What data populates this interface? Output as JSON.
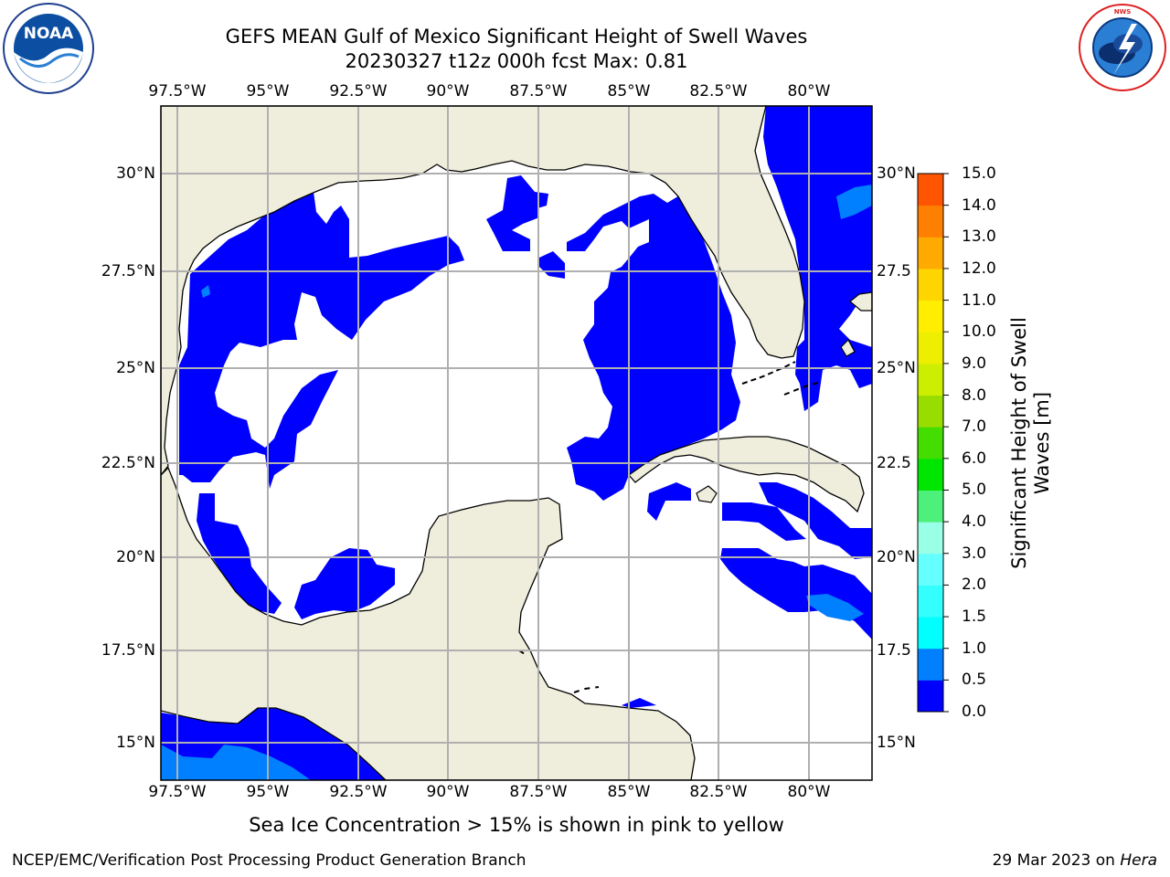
{
  "header": {
    "title": "GEFS MEAN Gulf of Mexico Significant Height of Swell Waves",
    "subtitle": "20230327 t12z 000h fcst   Max: 0.81"
  },
  "map": {
    "top_lon_labels": [
      "97.5°W",
      "95°W",
      "92.5°W",
      "90°W",
      "87.5°W",
      "85°W",
      "82.5°W",
      "80°W"
    ],
    "bottom_lon_labels": [
      "97.5°W",
      "95°W",
      "92.5°W",
      "90°W",
      "87.5°W",
      "85°W",
      "82.5°W",
      "80°W"
    ],
    "left_lat_labels": [
      "30°N",
      "27.5°N",
      "25°N",
      "22.5°N",
      "20°N",
      "17.5°N",
      "15°N"
    ],
    "right_lat_labels": [
      "30°N",
      "27.5",
      "25°N",
      "22.5",
      "20°N",
      "17.5",
      "15°N"
    ],
    "colors": {
      "land": "#efeddc",
      "ocean": "#ffffff",
      "grid": "#b0b0b0",
      "swell_0_0p5": "#0000ff",
      "swell_0p5_1": "#0080ff"
    }
  },
  "colorbar": {
    "title": "Significant Height of Swell Waves [m]",
    "levels": [
      "0.0",
      "0.5",
      "1.0",
      "1.5",
      "2.0",
      "3.0",
      "4.0",
      "5.0",
      "6.0",
      "7.0",
      "8.0",
      "9.0",
      "10.0",
      "11.0",
      "12.0",
      "13.0",
      "14.0",
      "15.0"
    ],
    "colors": [
      "#0000ff",
      "#0080ff",
      "#00ffff",
      "#33ffff",
      "#66ffff",
      "#99ffe6",
      "#4cf07a",
      "#00e600",
      "#44dd00",
      "#99dd00",
      "#ccee00",
      "#eeee00",
      "#ffee00",
      "#ffd500",
      "#ffaa00",
      "#ff8000",
      "#ff5500",
      "#ff2a00",
      "#ff0000"
    ]
  },
  "note": "Sea Ice Concentration > 15% is shown in pink to yellow",
  "footer": {
    "left": "NCEP/EMC/Verification Post Processing Product Generation Branch",
    "date": "29 Mar 2023 on ",
    "machine": "Hera"
  },
  "logos": {
    "noaa": "NOAA",
    "noaa_ring": "NATIONAL OCEANIC AND ATMOSPHERIC ADMINISTRATION · U.S. DEPARTMENT OF COMMERCE",
    "nws_ring": "NATIONAL WEATHER SERVICE"
  }
}
